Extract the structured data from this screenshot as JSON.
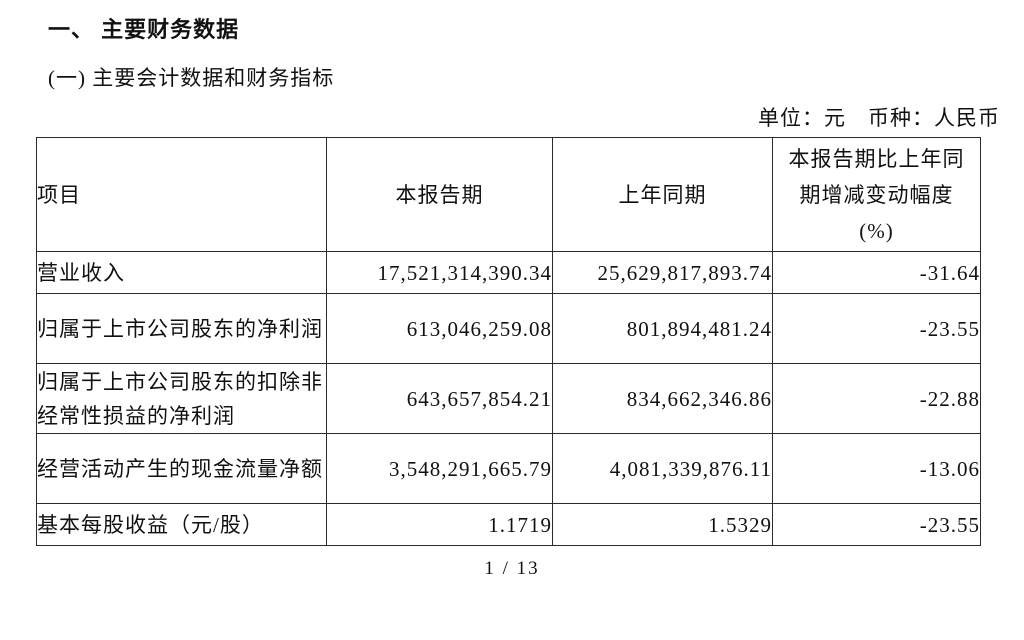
{
  "document": {
    "section_title": "一、 主要财务数据",
    "subsection_title": "(一) 主要会计数据和财务指标",
    "unit_note": "单位：元　币种：人民币",
    "page_indicator": "1 / 13"
  },
  "table": {
    "columns": [
      "项目",
      "本报告期",
      "上年同期",
      "本报告期比上年同\n期增减变动幅度\n(%)"
    ],
    "rows": [
      {
        "item": "营业收入",
        "current_period": "17,521,314,390.34",
        "prior_year_period": "25,629,817,893.74",
        "change_pct": "-31.64"
      },
      {
        "item": "归属于上市公司股东的净利润",
        "current_period": "613,046,259.08",
        "prior_year_period": "801,894,481.24",
        "change_pct": "-23.55"
      },
      {
        "item": "归属于上市公司股东的扣除非经常性损益的净利润",
        "current_period": "643,657,854.21",
        "prior_year_period": "834,662,346.86",
        "change_pct": "-22.88"
      },
      {
        "item": "经营活动产生的现金流量净额",
        "current_period": "3,548,291,665.79",
        "prior_year_period": "4,081,339,876.11",
        "change_pct": "-13.06"
      },
      {
        "item": "基本每股收益（元/股）",
        "current_period": "1.1719",
        "prior_year_period": "1.5329",
        "change_pct": "-23.55"
      }
    ]
  },
  "colors": {
    "text": "#111111",
    "border": "#2b2b2b",
    "background": "#ffffff"
  }
}
